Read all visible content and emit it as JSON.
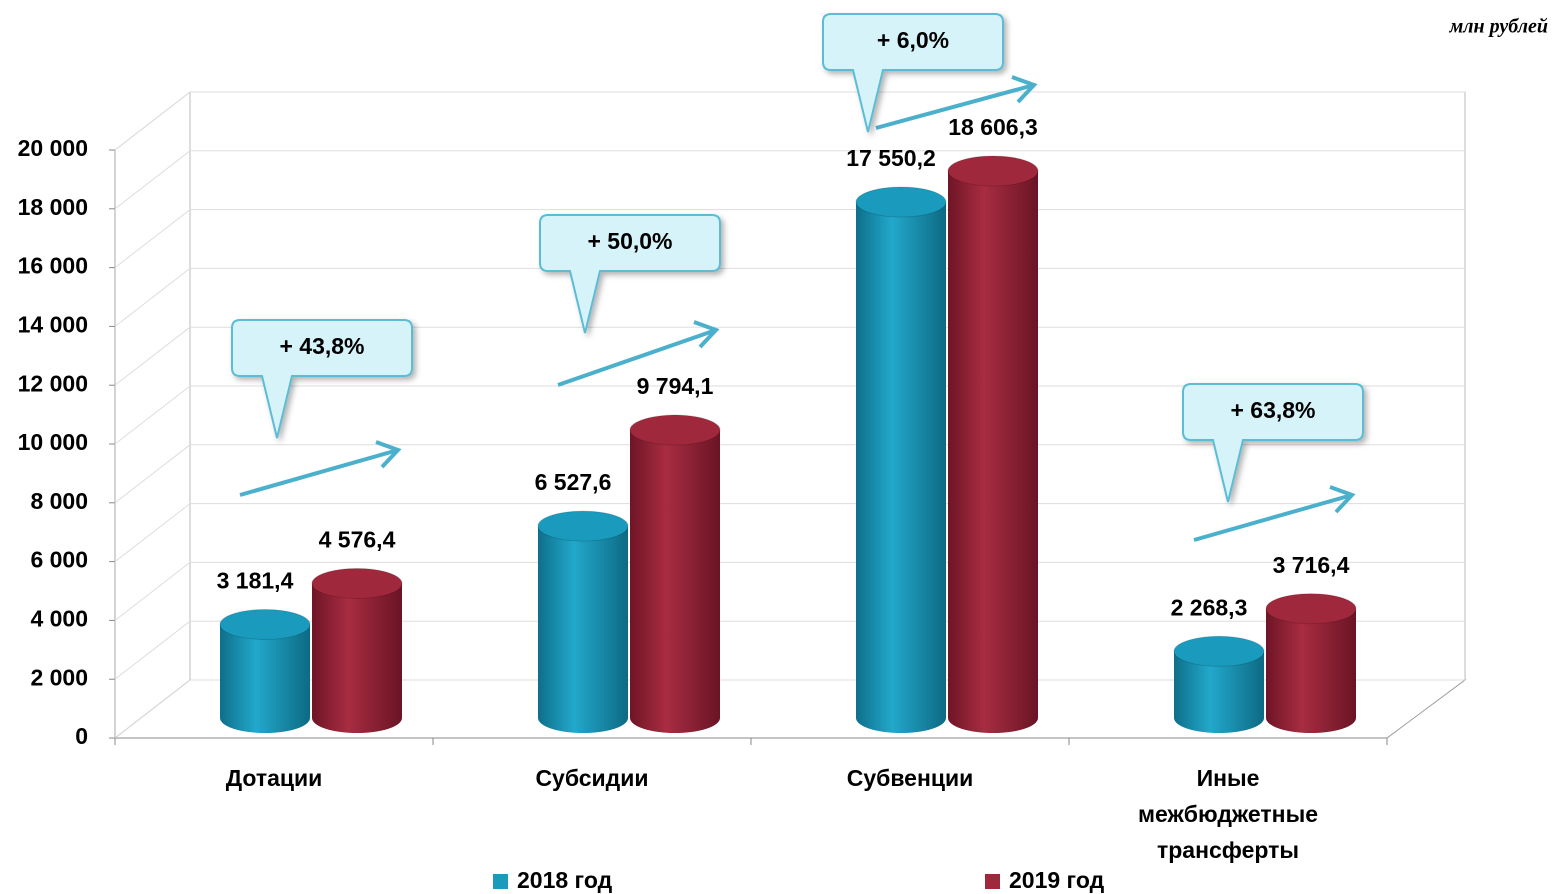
{
  "chart_data": {
    "type": "bar",
    "unit": "млн рублей",
    "categories": [
      "Дотации",
      "Субсидии",
      "Субвенции",
      "Иные межбюджетные трансферты"
    ],
    "series": [
      {
        "name": "2018 год",
        "color": "#1a9bbd",
        "values": [
          3181.4,
          6527.6,
          17550.2,
          2268.3
        ],
        "value_labels": [
          "3 181,4",
          "6 527,6",
          "17 550,2",
          "2 268,3"
        ]
      },
      {
        "name": "2019 год",
        "color": "#a0283c",
        "values": [
          4576.4,
          9794.1,
          18606.3,
          3716.4
        ],
        "value_labels": [
          "4 576,4",
          "9 794,1",
          "18 606,3",
          "3 716,4"
        ]
      }
    ],
    "annotations": [
      "+ 43,8%",
      "+ 50,0%",
      "+ 6,0%",
      "+ 63,8%"
    ],
    "ylim": [
      0,
      20000
    ],
    "yticks": [
      0,
      {
        "value": 2000,
        "label": "2 000"
      },
      {
        "value": 4000,
        "label": "4 000"
      },
      {
        "value": 6000,
        "label": "6 000"
      },
      {
        "value": 8000,
        "label": "8 000"
      },
      {
        "value": 10000,
        "label": "10 000"
      },
      {
        "value": 12000,
        "label": "12 000"
      },
      {
        "value": 14000,
        "label": "14 000"
      },
      {
        "value": 16000,
        "label": "16 000"
      },
      {
        "value": 18000,
        "label": "18 000"
      },
      {
        "value": 20000,
        "label": "20 000"
      }
    ],
    "grid": true,
    "legend": "bottom"
  }
}
